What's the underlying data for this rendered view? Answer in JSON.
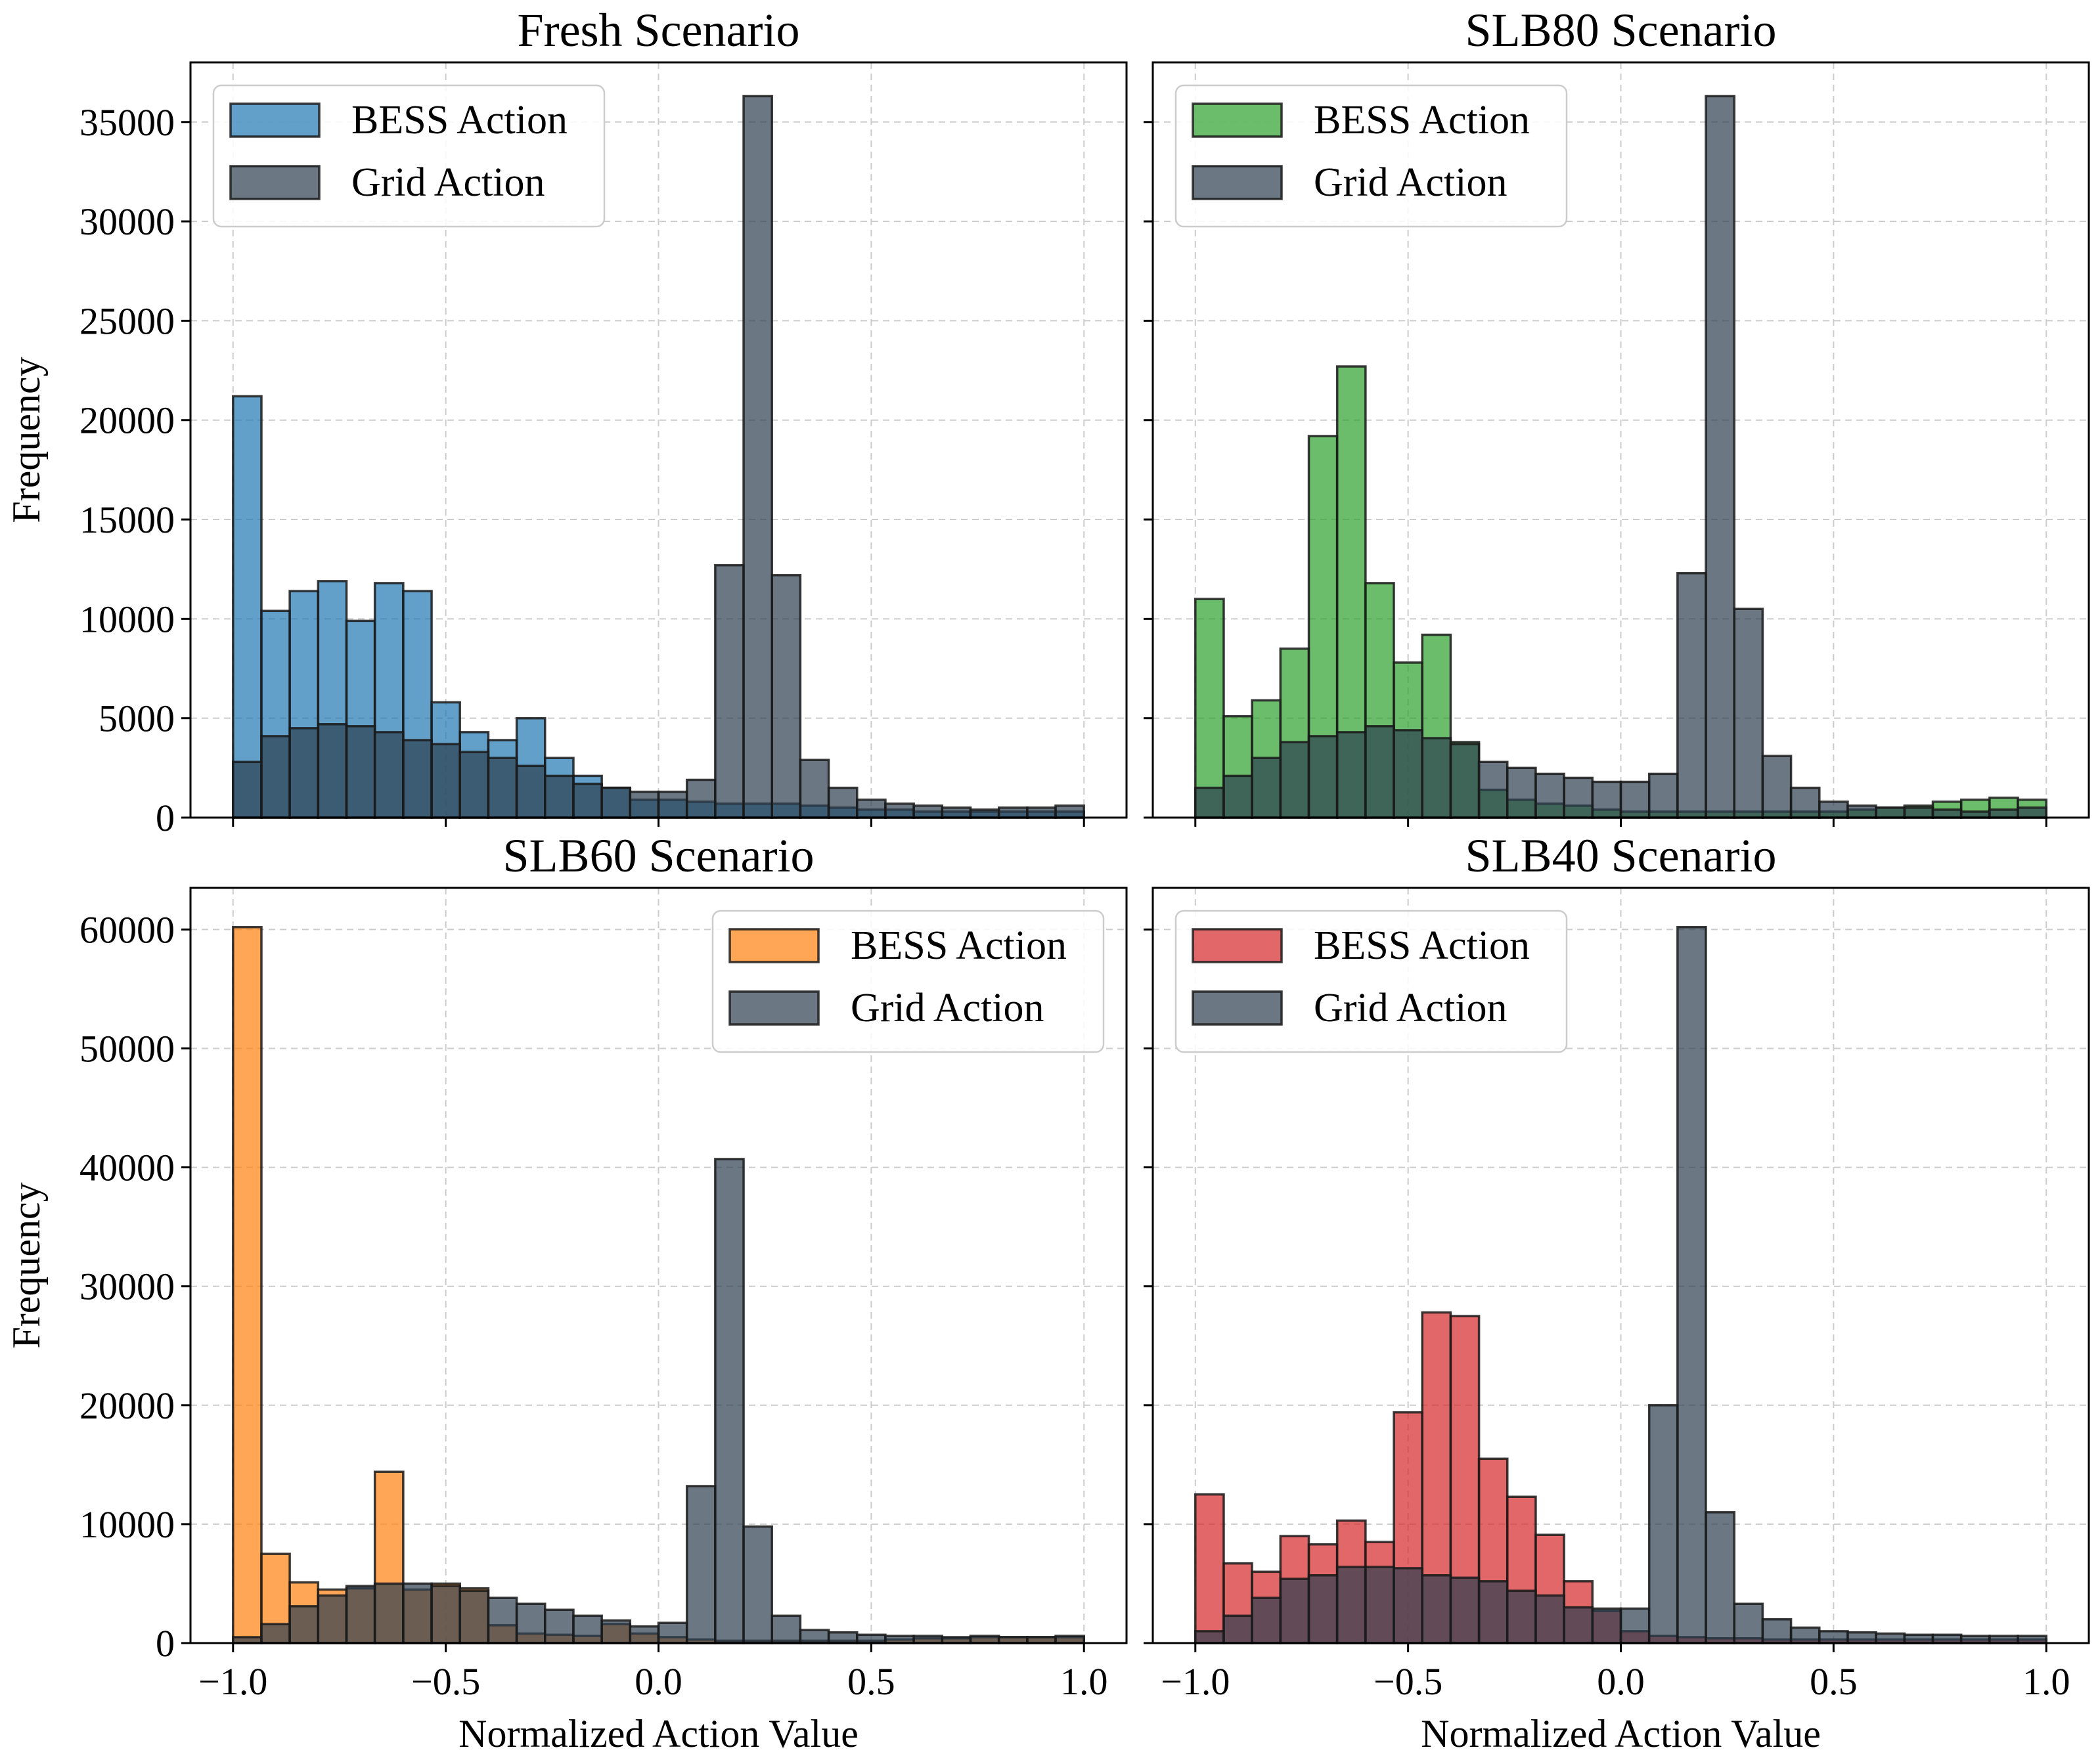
{
  "figure": {
    "x_axis_label": "Normalized Action Value",
    "y_axis_label": "Frequency"
  },
  "chart_data": [
    {
      "type": "histogram",
      "title": "Fresh Scenario",
      "bin_edges": [
        -1.0,
        -0.9333,
        -0.8667,
        -0.8,
        -0.7333,
        -0.6667,
        -0.6,
        -0.5333,
        -0.4667,
        -0.4,
        -0.3333,
        -0.2667,
        -0.2,
        -0.1333,
        -0.0667,
        0.0,
        0.0667,
        0.1333,
        0.2,
        0.2667,
        0.3333,
        0.4,
        0.4667,
        0.5333,
        0.6,
        0.6667,
        0.7333,
        0.8,
        0.8667,
        0.9333,
        1.0
      ],
      "xlim": [
        -1.1,
        1.1
      ],
      "ylim": [
        0,
        38000
      ],
      "xticks": [
        -1.0,
        -0.5,
        0.0,
        0.5,
        1.0
      ],
      "xtick_labels": [
        "−1.0",
        "−0.5",
        "0.0",
        "0.5",
        "1.0"
      ],
      "yticks": [
        0,
        5000,
        10000,
        15000,
        20000,
        25000,
        30000,
        35000
      ],
      "ytick_labels": [
        "0",
        "5000",
        "10000",
        "15000",
        "20000",
        "25000",
        "30000",
        "35000"
      ],
      "show_ylabels": true,
      "show_xlabels": false,
      "legend_position": "upper-left",
      "series": [
        {
          "name": "BESS Action",
          "color": "#1f77b4",
          "alpha": 0.7,
          "values": [
            21200,
            10400,
            11400,
            11900,
            9900,
            11800,
            11400,
            5800,
            4300,
            3900,
            5000,
            3000,
            2100,
            1500,
            900,
            900,
            800,
            700,
            700,
            700,
            600,
            500,
            400,
            400,
            300,
            300,
            300,
            300,
            300,
            300
          ]
        },
        {
          "name": "Grid Action",
          "color": "#2c3e50",
          "alpha": 0.7,
          "values": [
            2800,
            4100,
            4500,
            4700,
            4600,
            4300,
            3900,
            3700,
            3300,
            3000,
            2600,
            2100,
            1700,
            1500,
            1300,
            1300,
            1900,
            12700,
            36300,
            12200,
            2900,
            1500,
            900,
            700,
            600,
            500,
            400,
            500,
            500,
            600
          ]
        }
      ]
    },
    {
      "type": "histogram",
      "title": "SLB80 Scenario",
      "bin_edges": [
        -1.0,
        -0.9333,
        -0.8667,
        -0.8,
        -0.7333,
        -0.6667,
        -0.6,
        -0.5333,
        -0.4667,
        -0.4,
        -0.3333,
        -0.2667,
        -0.2,
        -0.1333,
        -0.0667,
        0.0,
        0.0667,
        0.1333,
        0.2,
        0.2667,
        0.3333,
        0.4,
        0.4667,
        0.5333,
        0.6,
        0.6667,
        0.7333,
        0.8,
        0.8667,
        0.9333,
        1.0
      ],
      "xlim": [
        -1.1,
        1.1
      ],
      "ylim": [
        0,
        38000
      ],
      "xticks": [
        -1.0,
        -0.5,
        0.0,
        0.5,
        1.0
      ],
      "xtick_labels": [
        "−1.0",
        "−0.5",
        "0.0",
        "0.5",
        "1.0"
      ],
      "yticks": [
        0,
        5000,
        10000,
        15000,
        20000,
        25000,
        30000,
        35000
      ],
      "ytick_labels": [
        "0",
        "5000",
        "10000",
        "15000",
        "20000",
        "25000",
        "30000",
        "35000"
      ],
      "show_ylabels": false,
      "show_xlabels": false,
      "legend_position": "upper-left",
      "series": [
        {
          "name": "BESS Action",
          "color": "#2ca02c",
          "alpha": 0.7,
          "values": [
            11000,
            5100,
            5900,
            8500,
            19200,
            22700,
            11800,
            7800,
            9200,
            3800,
            1400,
            900,
            700,
            600,
            400,
            300,
            300,
            300,
            300,
            300,
            300,
            300,
            300,
            400,
            500,
            600,
            800,
            900,
            1000,
            900
          ]
        },
        {
          "name": "Grid Action",
          "color": "#2c3e50",
          "alpha": 0.7,
          "values": [
            1500,
            2100,
            3000,
            3800,
            4100,
            4300,
            4600,
            4400,
            4000,
            3700,
            2800,
            2500,
            2200,
            2000,
            1800,
            1800,
            2200,
            12300,
            36300,
            10500,
            3100,
            1500,
            800,
            600,
            500,
            500,
            400,
            300,
            400,
            500
          ]
        }
      ]
    },
    {
      "type": "histogram",
      "title": "SLB60 Scenario",
      "bin_edges": [
        -1.0,
        -0.9333,
        -0.8667,
        -0.8,
        -0.7333,
        -0.6667,
        -0.6,
        -0.5333,
        -0.4667,
        -0.4,
        -0.3333,
        -0.2667,
        -0.2,
        -0.1333,
        -0.0667,
        0.0,
        0.0667,
        0.1333,
        0.2,
        0.2667,
        0.3333,
        0.4,
        0.4667,
        0.5333,
        0.6,
        0.6667,
        0.7333,
        0.8,
        0.8667,
        0.9333,
        1.0
      ],
      "xlim": [
        -1.1,
        1.1
      ],
      "ylim": [
        0,
        63500
      ],
      "xticks": [
        -1.0,
        -0.5,
        0.0,
        0.5,
        1.0
      ],
      "xtick_labels": [
        "−1.0",
        "−0.5",
        "0.0",
        "0.5",
        "1.0"
      ],
      "yticks": [
        0,
        10000,
        20000,
        30000,
        40000,
        50000,
        60000
      ],
      "ytick_labels": [
        "0",
        "10000",
        "20000",
        "30000",
        "40000",
        "50000",
        "60000"
      ],
      "show_ylabels": true,
      "show_xlabels": true,
      "legend_position": "upper-right",
      "series": [
        {
          "name": "BESS Action",
          "color": "#ff7f0e",
          "alpha": 0.7,
          "values": [
            60200,
            7500,
            5100,
            4500,
            4600,
            14400,
            4500,
            5000,
            4600,
            1500,
            800,
            700,
            600,
            1600,
            800,
            500,
            300,
            200,
            200,
            200,
            200,
            200,
            200,
            300,
            400,
            400,
            500,
            500,
            500,
            500
          ]
        },
        {
          "name": "Grid Action",
          "color": "#2c3e50",
          "alpha": 0.7,
          "values": [
            500,
            1600,
            3100,
            4000,
            4800,
            5000,
            5000,
            4800,
            4400,
            3800,
            3300,
            2800,
            2300,
            1900,
            1400,
            1700,
            13200,
            40700,
            9800,
            2300,
            1100,
            900,
            700,
            600,
            600,
            500,
            600,
            500,
            500,
            600
          ]
        }
      ]
    },
    {
      "type": "histogram",
      "title": "SLB40 Scenario",
      "bin_edges": [
        -1.0,
        -0.9333,
        -0.8667,
        -0.8,
        -0.7333,
        -0.6667,
        -0.6,
        -0.5333,
        -0.4667,
        -0.4,
        -0.3333,
        -0.2667,
        -0.2,
        -0.1333,
        -0.0667,
        0.0,
        0.0667,
        0.1333,
        0.2,
        0.2667,
        0.3333,
        0.4,
        0.4667,
        0.5333,
        0.6,
        0.6667,
        0.7333,
        0.8,
        0.8667,
        0.9333,
        1.0
      ],
      "xlim": [
        -1.1,
        1.1
      ],
      "ylim": [
        0,
        63500
      ],
      "xticks": [
        -1.0,
        -0.5,
        0.0,
        0.5,
        1.0
      ],
      "xtick_labels": [
        "−1.0",
        "−0.5",
        "0.0",
        "0.5",
        "1.0"
      ],
      "yticks": [
        0,
        10000,
        20000,
        30000,
        40000,
        50000,
        60000
      ],
      "ytick_labels": [
        "0",
        "10000",
        "20000",
        "30000",
        "40000",
        "50000",
        "60000"
      ],
      "show_ylabels": false,
      "show_xlabels": true,
      "legend_position": "upper-left",
      "series": [
        {
          "name": "BESS Action",
          "color": "#d62728",
          "alpha": 0.7,
          "values": [
            12500,
            6700,
            6000,
            9000,
            8300,
            10300,
            8500,
            19400,
            27800,
            27500,
            15500,
            12300,
            9100,
            5200,
            2700,
            1000,
            600,
            500,
            400,
            400,
            300,
            300,
            300,
            300,
            300,
            300,
            300,
            300,
            300,
            300
          ]
        },
        {
          "name": "Grid Action",
          "color": "#2c3e50",
          "alpha": 0.7,
          "values": [
            1000,
            2300,
            3800,
            5400,
            5700,
            6400,
            6400,
            6300,
            5700,
            5500,
            5200,
            4400,
            4000,
            3000,
            2900,
            2900,
            20000,
            60200,
            11000,
            3300,
            2000,
            1300,
            1000,
            900,
            800,
            700,
            700,
            600,
            600,
            600
          ]
        }
      ]
    }
  ]
}
